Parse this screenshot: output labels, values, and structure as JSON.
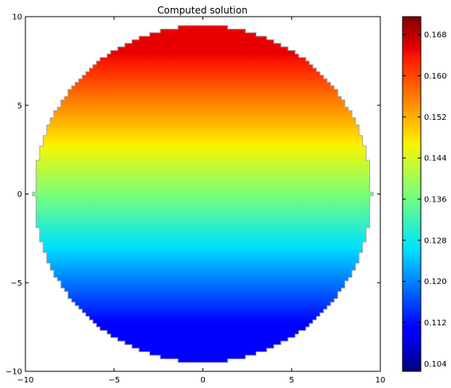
{
  "chart_data": {
    "type": "heatmap",
    "title": "Computed solution",
    "xlabel": "",
    "ylabel": "",
    "xlim": [
      -10,
      10
    ],
    "ylim": [
      -10,
      10
    ],
    "x_ticks": [
      -10,
      -5,
      0,
      5,
      10
    ],
    "y_ticks": [
      -10,
      -5,
      0,
      5,
      10
    ],
    "x_tick_labels": [
      "−10",
      "−5",
      "0",
      "5",
      "10"
    ],
    "y_tick_labels": [
      "−10",
      "−5",
      "0",
      "5",
      "10"
    ],
    "domain": {
      "shape": "disk",
      "center": [
        0,
        0
      ],
      "radius": 9.5
    },
    "field": {
      "gradient_axis": "y",
      "value_at_y_min": 0.103,
      "value_at_y_max": 0.171
    },
    "colormap": "jet",
    "grid": false,
    "colorbar": {
      "placement": "right",
      "min": 0.1025,
      "max": 0.1715,
      "ticks": [
        0.104,
        0.112,
        0.12,
        0.128,
        0.136,
        0.144,
        0.152,
        0.16,
        0.168
      ],
      "tick_labels": [
        "0.104",
        "0.112",
        "0.120",
        "0.128",
        "0.136",
        "0.144",
        "0.152",
        "0.160",
        "0.168"
      ]
    }
  }
}
